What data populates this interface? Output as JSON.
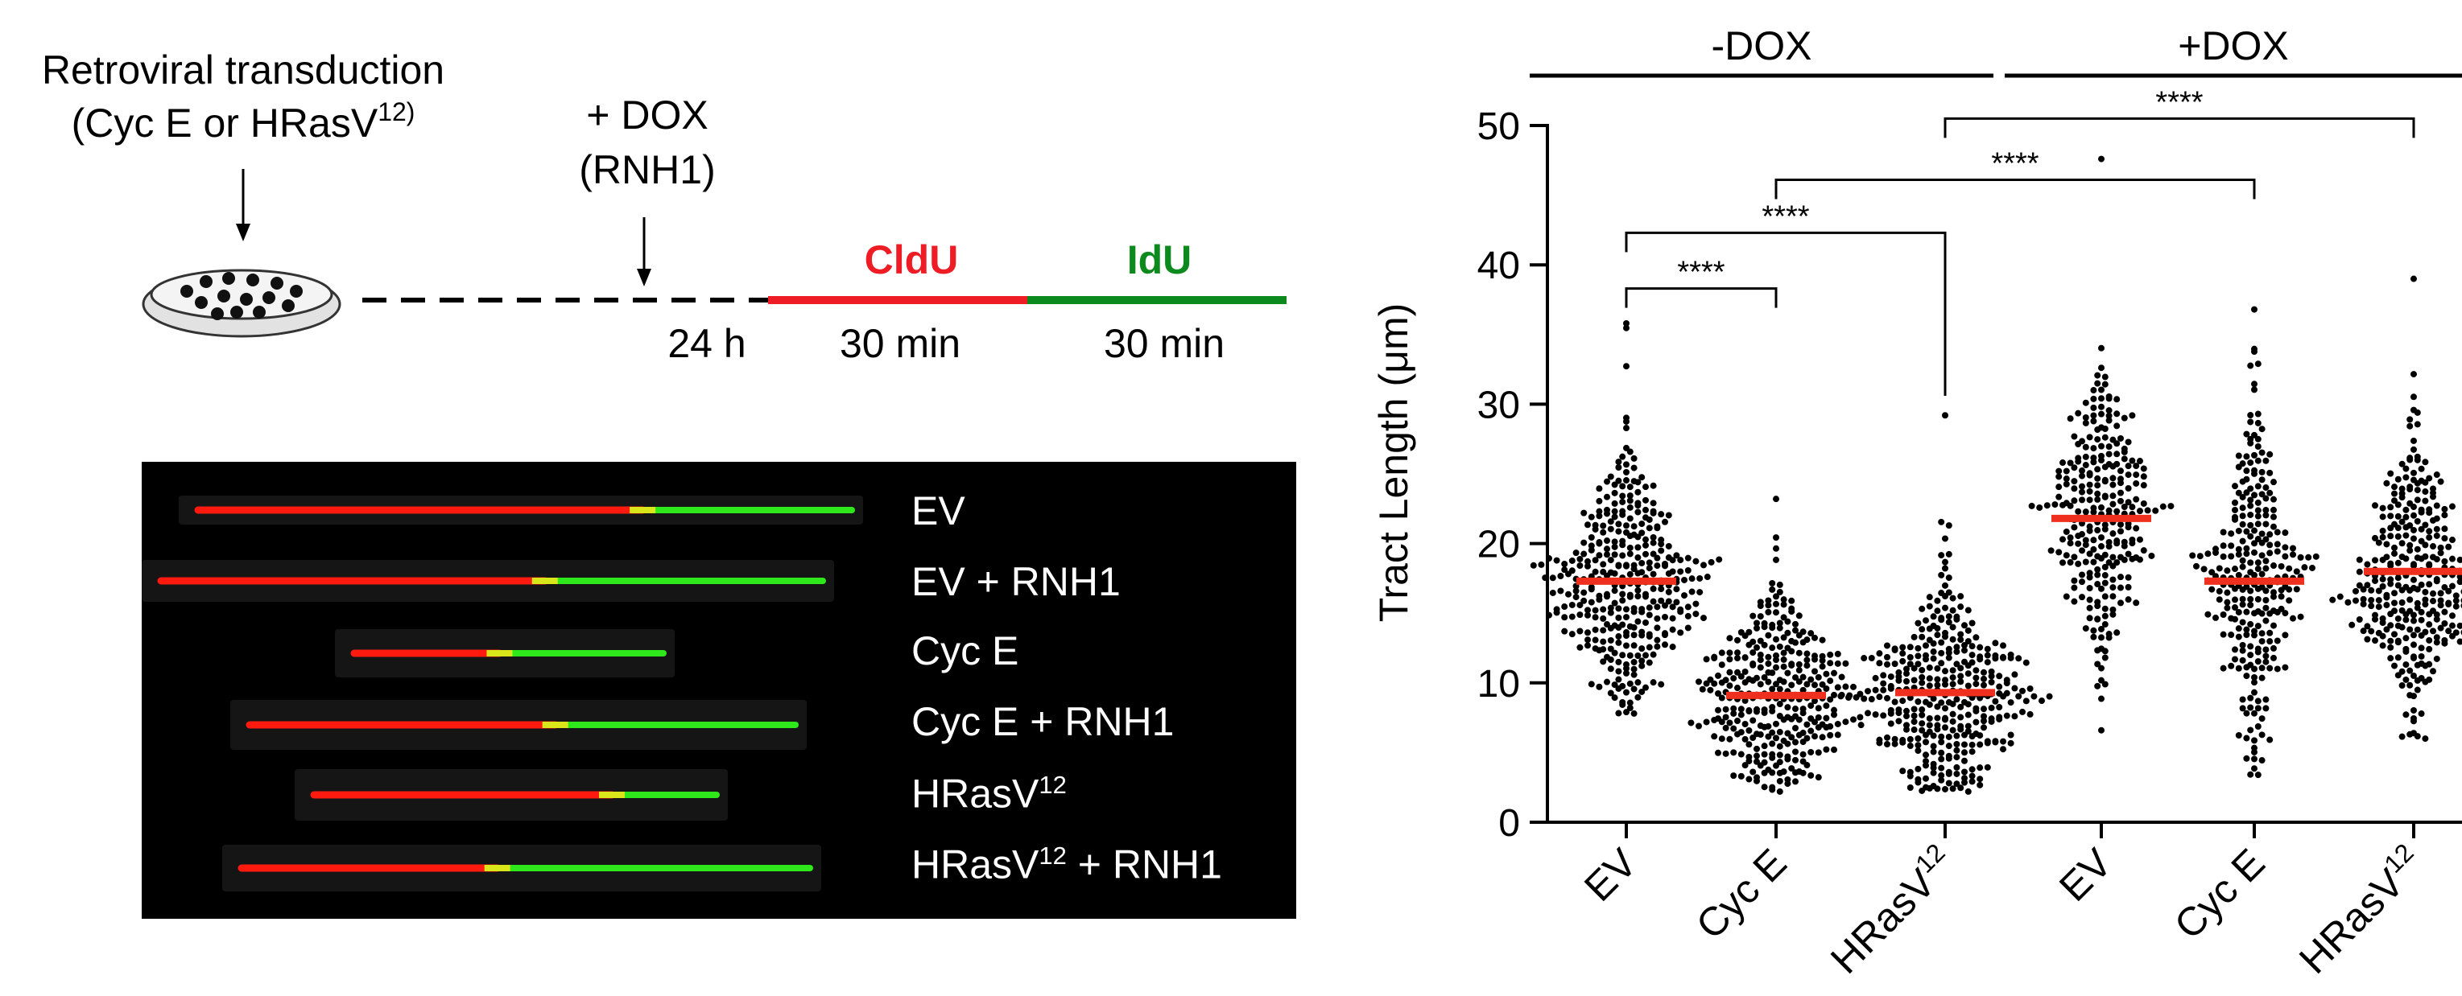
{
  "schematic": {
    "title_line1": "Retroviral transduction",
    "title_line2_prefix": "(Cyc E or HRasV",
    "title_line2_sup": "12)",
    "dox_line1": "+ DOX",
    "dox_line2": "(RNH1)",
    "time_24h": "24 h",
    "cldu_label": "CldU",
    "idu_label": "IdU",
    "cldu_time": "30 min",
    "idu_time": "30 min",
    "colors": {
      "cldu": "#ee1c24",
      "idu": "#0d8a1e"
    }
  },
  "fibers": {
    "labels": [
      {
        "text": "EV",
        "sup": "",
        "suffix": ""
      },
      {
        "text": "EV + RNH1",
        "sup": "",
        "suffix": ""
      },
      {
        "text": "Cyc E",
        "sup": "",
        "suffix": ""
      },
      {
        "text": "Cyc E + RNH1",
        "sup": "",
        "suffix": ""
      },
      {
        "text": "HRasV",
        "sup": "12",
        "suffix": ""
      },
      {
        "text": "HRasV",
        "sup": "12",
        "suffix": " + RNH1"
      }
    ],
    "red_fraction": [
      0.68,
      0.58,
      0.47,
      0.56,
      0.74,
      0.45
    ]
  },
  "chart_data": {
    "type": "scatter",
    "ylabel": "Tract Length (μm)",
    "ylim": [
      0,
      50
    ],
    "yticks": [
      0,
      10,
      20,
      30,
      40,
      50
    ],
    "categories": [
      {
        "text": "EV",
        "sup": ""
      },
      {
        "text": "Cyc E",
        "sup": ""
      },
      {
        "text": "HRasV",
        "sup": "12"
      },
      {
        "text": "EV",
        "sup": ""
      },
      {
        "text": "Cyc E",
        "sup": ""
      },
      {
        "text": "HRasV",
        "sup": "12"
      }
    ],
    "groups": [
      {
        "label": "-DOX",
        "categories": [
          0,
          1,
          2
        ]
      },
      {
        "label": "+DOX",
        "categories": [
          3,
          4,
          5
        ]
      }
    ],
    "series": [
      {
        "median": 17.3,
        "min": 7.8,
        "max": 35.8,
        "sd": 4.6,
        "n": 360,
        "seed": 11
      },
      {
        "median": 9.1,
        "min": 2.2,
        "max": 23.2,
        "sd": 4.0,
        "n": 330,
        "seed": 23
      },
      {
        "median": 9.3,
        "min": 2.2,
        "max": 29.2,
        "sd": 4.2,
        "n": 360,
        "seed": 37
      },
      {
        "median": 21.8,
        "min": 6.6,
        "max": 47.6,
        "sd": 5.2,
        "n": 270,
        "seed": 41
      },
      {
        "median": 17.3,
        "min": 3.4,
        "max": 36.8,
        "sd": 5.8,
        "n": 270,
        "seed": 53
      },
      {
        "median": 18.0,
        "min": 6.0,
        "max": 39.0,
        "sd": 5.0,
        "n": 320,
        "seed": 67
      }
    ],
    "comparisons": [
      {
        "from": 0,
        "to": 1,
        "label": "****",
        "y": 38.3
      },
      {
        "from": 0,
        "to": 2,
        "label": "****",
        "y": 42.3
      },
      {
        "from": 1,
        "to": 4,
        "label": "****",
        "y": 46.1
      },
      {
        "from": 2,
        "to": 5,
        "label": "****",
        "y": 50.5
      }
    ],
    "median_color": "#f0301e",
    "point_color": "#000000"
  }
}
